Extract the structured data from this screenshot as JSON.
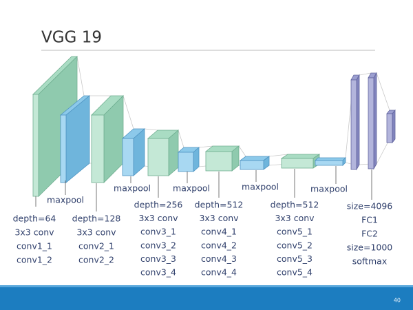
{
  "title": "VGG 19",
  "maxpool_labels": [
    "maxpool",
    "maxpool",
    "maxpool",
    "maxpool",
    "maxpool"
  ],
  "columns": [
    {
      "lines": [
        "depth=64",
        "3x3 conv",
        "conv1_1",
        "conv1_2"
      ]
    },
    {
      "lines": [
        "depth=128",
        "3x3 conv",
        "conv2_1",
        "conv2_2"
      ]
    },
    {
      "lines": [
        "depth=256",
        "3x3 conv",
        "conv3_1",
        "conv3_2",
        "conv3_3",
        "conv3_4"
      ]
    },
    {
      "lines": [
        "depth=512",
        "3x3 conv",
        "conv4_1",
        "conv4_2",
        "conv4_3",
        "conv4_4"
      ]
    },
    {
      "lines": [
        "depth=512",
        "3x3 conv",
        "conv5_1",
        "conv5_2",
        "conv5_3",
        "conv5_4"
      ]
    },
    {
      "lines": [
        "size=4096",
        "FC1",
        "FC2",
        "size=1000",
        "softmax"
      ]
    }
  ],
  "page_number": "40"
}
